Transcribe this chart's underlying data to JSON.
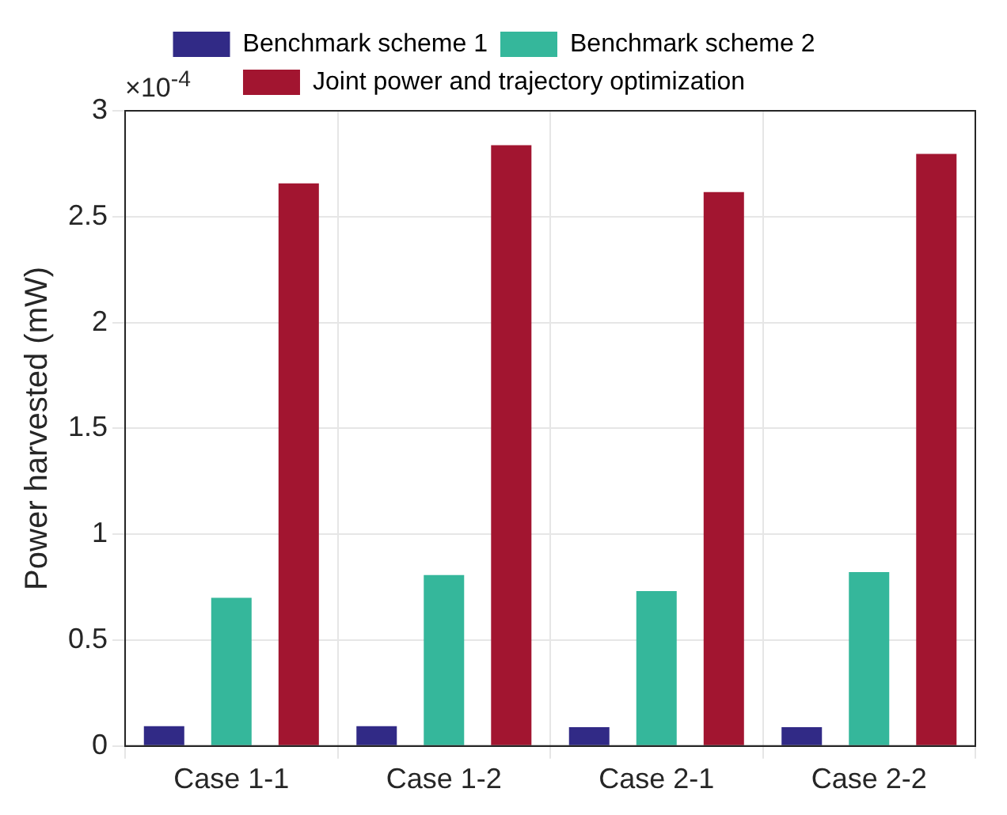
{
  "chart_data": {
    "type": "bar",
    "ylabel": "Power harvested (mW)",
    "annotations": [
      "×10$^{-4}$"
    ],
    "categories": [
      "Case 1-1",
      "Case 1-2",
      "Case 2-1",
      "Case 2-2"
    ],
    "series": [
      {
        "name": "Benchmark scheme 1",
        "color": "#312a86",
        "values": [
          0.094,
          0.094,
          0.089,
          0.089
        ]
      },
      {
        "name": "Benchmark scheme 2",
        "color": "#35b79b",
        "values": [
          0.7,
          0.807,
          0.732,
          0.821
        ]
      },
      {
        "name": "Joint power and trajectory optimization",
        "color": "#a21530",
        "values": [
          2.657,
          2.837,
          2.616,
          2.796
        ]
      }
    ],
    "ylim": [
      0,
      3
    ],
    "yticks": [
      0,
      0.5,
      1,
      1.5,
      2,
      2.5,
      3
    ],
    "grid": true,
    "legend": "top"
  }
}
